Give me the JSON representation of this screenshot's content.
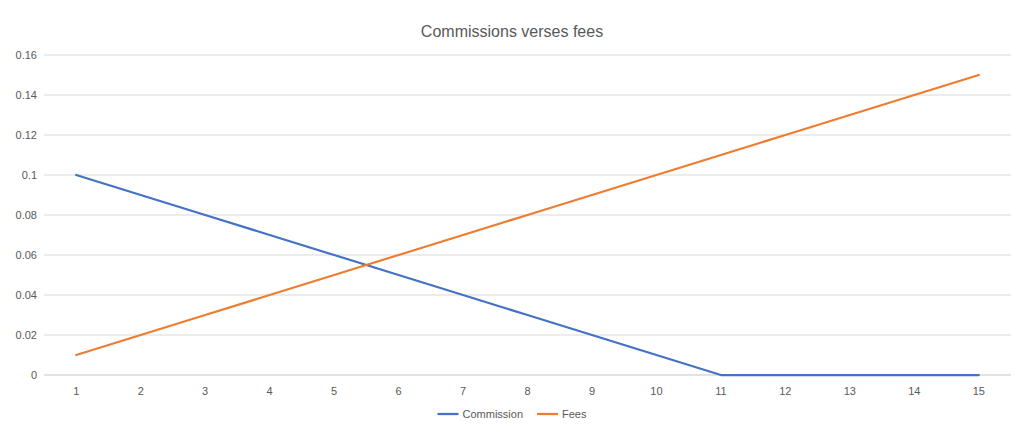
{
  "chart_data": {
    "type": "line",
    "title": "Commissions verses fees",
    "categories": [
      "1",
      "2",
      "3",
      "4",
      "5",
      "6",
      "7",
      "8",
      "9",
      "10",
      "11",
      "12",
      "13",
      "14",
      "15"
    ],
    "series": [
      {
        "name": "Commission",
        "color": "#4472c4",
        "values": [
          0.1,
          0.09,
          0.08,
          0.07,
          0.06,
          0.05,
          0.04,
          0.03,
          0.02,
          0.01,
          0,
          0,
          0,
          0,
          0
        ]
      },
      {
        "name": "Fees",
        "color": "#ed7d31",
        "values": [
          0.01,
          0.02,
          0.03,
          0.04,
          0.05,
          0.06,
          0.07,
          0.08,
          0.09,
          0.1,
          0.11,
          0.12,
          0.13,
          0.14,
          0.15
        ]
      }
    ],
    "ylim": [
      0,
      0.16
    ],
    "yticks": [
      0,
      0.02,
      0.04,
      0.06,
      0.08,
      0.1,
      0.12,
      0.14,
      0.16
    ],
    "grid": true,
    "legend": "bottom"
  }
}
